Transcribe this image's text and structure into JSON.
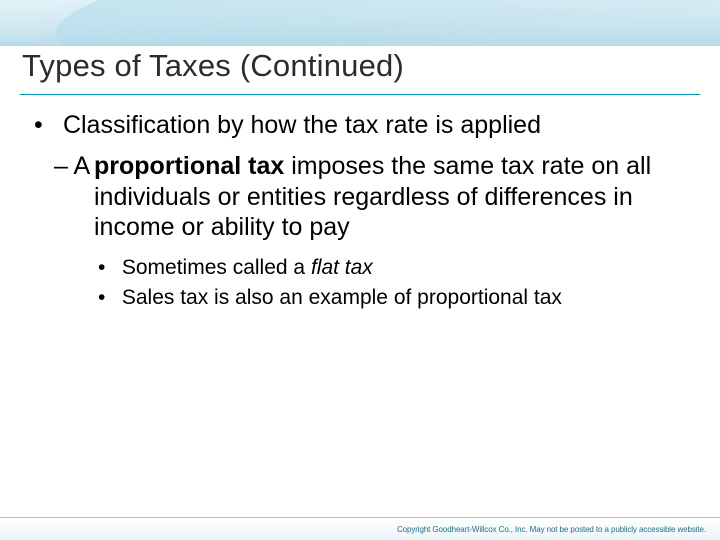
{
  "colors": {
    "header_gradient_top": "#d9edf4",
    "header_gradient_mid": "#c9e4ef",
    "header_gradient_bottom": "#b8dbe9",
    "title_rule": "#008fb3",
    "footer_line": "#8fd1e3",
    "footer_fade_to": "#eaf5f9",
    "copyright_color": "#2a6e86",
    "title_text": "#2c2c2c",
    "body_text": "#000000",
    "background": "#ffffff"
  },
  "typography": {
    "title_fontsize": 31,
    "l1_fontsize": 25,
    "l2_fontsize": 25,
    "l3_fontsize": 21,
    "copyright_fontsize": 8,
    "font_family": "Arial"
  },
  "title": "Types of Taxes (Continued)",
  "bullets": {
    "l1": "Classification by how the tax rate is applied",
    "l2_prefix": "– A ",
    "l2_bold": "proportional tax",
    "l2_rest": " imposes the same tax rate on all individuals or entities regardless of differences in income or ability to pay",
    "l3_a_prefix": "Sometimes called a ",
    "l3_a_italic": "flat tax",
    "l3_b": "Sales tax is also an example of proportional tax"
  },
  "copyright": "Copyright Goodheart-Willcox Co., Inc.  May not be posted to a publicly accessible website."
}
